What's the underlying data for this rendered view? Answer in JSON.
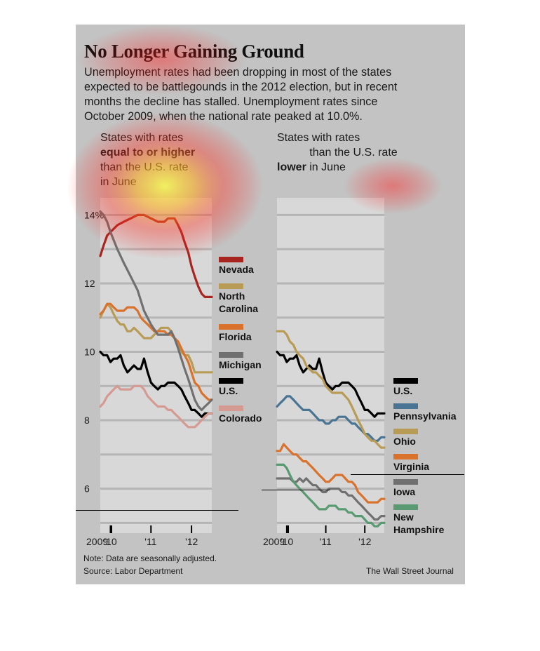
{
  "title": "No Longer Gaining Ground",
  "subtitle": "Unemployment rates had been dropping in most of the states expected to be battlegounds in the 2012 election, but in recent months the decline has stalled. Unemployment rates since October 2009, when the national rate peaked at 10.0%.",
  "left_header": {
    "pre": "States with rates",
    "bold": "equal to or higher",
    "post": "than the U.S. rate in June"
  },
  "right_header": {
    "pre": "States with rates",
    "bold": "lower",
    "post": "than the U.S. rate in June"
  },
  "note": "Note: Data are seasonally adjusted.",
  "source": "Source: Labor Department",
  "credit": "The Wall Street Journal",
  "colors": {
    "nevada": "#a8251f",
    "north_carolina": "#b89b55",
    "florida": "#d9722c",
    "michigan": "#707070",
    "us": "#000000",
    "colorado": "#d59a92",
    "pennsylvania": "#4a7493",
    "ohio": "#b89b55",
    "virginia": "#d9722c",
    "iowa": "#707070",
    "new_hampshire": "#5a9a73",
    "plot_bg": "#d8d8d8",
    "panel_bg": "#c3c3c3"
  },
  "chart_data": [
    {
      "type": "line",
      "panel": "left",
      "y_tick_labels": [
        "14%",
        "12",
        "10",
        "8",
        "6"
      ],
      "y_ticks": [
        14,
        12,
        10,
        8,
        6
      ],
      "ylim": [
        4.7,
        14.5
      ],
      "x_tick_labels": [
        "2009",
        "'10",
        "'11",
        "'12"
      ],
      "x_ticks": [
        2009.75,
        2010,
        2011,
        2012
      ],
      "xlim": [
        2009.75,
        2012.5
      ],
      "series": [
        {
          "name": "Nevada",
          "key": "nevada",
          "x": [
            2009.75,
            2009.83,
            2009.92,
            2010,
            2010.17,
            2010.33,
            2010.5,
            2010.67,
            2010.83,
            2011,
            2011.17,
            2011.33,
            2011.42,
            2011.5,
            2011.58,
            2011.67,
            2011.75,
            2011.83,
            2011.92,
            2012,
            2012.08,
            2012.17,
            2012.25,
            2012.33,
            2012.42,
            2012.5
          ],
          "y": [
            12.8,
            13.1,
            13.4,
            13.5,
            13.7,
            13.8,
            13.9,
            14.0,
            14.0,
            13.9,
            13.8,
            13.8,
            13.9,
            13.9,
            13.9,
            13.7,
            13.5,
            13.2,
            12.9,
            12.5,
            12.2,
            11.9,
            11.7,
            11.6,
            11.6,
            11.6
          ]
        },
        {
          "name": "North Carolina",
          "key": "north_carolina",
          "x": [
            2009.75,
            2009.83,
            2009.92,
            2010,
            2010.08,
            2010.17,
            2010.25,
            2010.33,
            2010.42,
            2010.5,
            2010.58,
            2010.67,
            2010.75,
            2010.83,
            2010.92,
            2011,
            2011.08,
            2011.17,
            2011.25,
            2011.33,
            2011.42,
            2011.5,
            2011.58,
            2011.67,
            2011.75,
            2011.83,
            2011.92,
            2012,
            2012.08,
            2012.17,
            2012.25,
            2012.33,
            2012.42,
            2012.5
          ],
          "y": [
            11.0,
            11.2,
            11.4,
            11.3,
            11.1,
            10.9,
            10.8,
            10.8,
            10.6,
            10.6,
            10.7,
            10.6,
            10.5,
            10.4,
            10.4,
            10.4,
            10.5,
            10.6,
            10.7,
            10.7,
            10.7,
            10.6,
            10.4,
            10.3,
            10.0,
            9.9,
            9.9,
            9.7,
            9.4,
            9.4,
            9.4,
            9.4,
            9.4,
            9.4
          ]
        },
        {
          "name": "Florida",
          "key": "florida",
          "x": [
            2009.75,
            2009.83,
            2009.92,
            2010,
            2010.08,
            2010.17,
            2010.25,
            2010.33,
            2010.42,
            2010.5,
            2010.58,
            2010.67,
            2010.75,
            2010.83,
            2010.92,
            2011,
            2011.08,
            2011.17,
            2011.25,
            2011.33,
            2011.42,
            2011.5,
            2011.58,
            2011.67,
            2011.75,
            2011.83,
            2011.92,
            2012,
            2012.08,
            2012.17,
            2012.25,
            2012.33,
            2012.42,
            2012.5
          ],
          "y": [
            11.1,
            11.2,
            11.4,
            11.4,
            11.3,
            11.2,
            11.2,
            11.2,
            11.3,
            11.3,
            11.3,
            11.2,
            11.0,
            10.9,
            10.8,
            10.7,
            10.6,
            10.6,
            10.6,
            10.6,
            10.5,
            10.5,
            10.4,
            10.3,
            10.1,
            9.9,
            9.7,
            9.4,
            9.1,
            9.0,
            8.8,
            8.7,
            8.6,
            8.6
          ]
        },
        {
          "name": "Michigan",
          "key": "michigan",
          "x": [
            2009.75,
            2009.83,
            2009.92,
            2010,
            2010.17,
            2010.33,
            2010.5,
            2010.67,
            2010.83,
            2011,
            2011.17,
            2011.33,
            2011.42,
            2011.5,
            2011.58,
            2011.67,
            2011.75,
            2011.83,
            2011.92,
            2012,
            2012.08,
            2012.17,
            2012.25,
            2012.33,
            2012.42,
            2012.5
          ],
          "y": [
            14.1,
            14.0,
            13.8,
            13.5,
            13.0,
            12.6,
            12.2,
            11.8,
            11.2,
            10.8,
            10.5,
            10.5,
            10.5,
            10.6,
            10.4,
            10.1,
            9.8,
            9.5,
            9.2,
            8.9,
            8.6,
            8.4,
            8.3,
            8.4,
            8.5,
            8.6
          ]
        },
        {
          "name": "U.S.",
          "key": "us",
          "x": [
            2009.75,
            2009.83,
            2009.92,
            2010,
            2010.08,
            2010.17,
            2010.25,
            2010.33,
            2010.42,
            2010.5,
            2010.58,
            2010.67,
            2010.75,
            2010.83,
            2010.92,
            2011,
            2011.08,
            2011.17,
            2011.25,
            2011.33,
            2011.42,
            2011.5,
            2011.58,
            2011.67,
            2011.75,
            2011.83,
            2011.92,
            2012,
            2012.08,
            2012.17,
            2012.25,
            2012.33,
            2012.42,
            2012.5
          ],
          "y": [
            10.0,
            9.9,
            9.9,
            9.7,
            9.8,
            9.8,
            9.9,
            9.6,
            9.4,
            9.5,
            9.6,
            9.5,
            9.5,
            9.8,
            9.4,
            9.1,
            9.0,
            8.9,
            9.0,
            9.0,
            9.1,
            9.1,
            9.1,
            9.0,
            8.9,
            8.7,
            8.5,
            8.3,
            8.3,
            8.2,
            8.1,
            8.2,
            8.2,
            8.2
          ]
        },
        {
          "name": "Colorado",
          "key": "colorado",
          "x": [
            2009.75,
            2009.83,
            2009.92,
            2010,
            2010.08,
            2010.17,
            2010.25,
            2010.33,
            2010.42,
            2010.5,
            2010.58,
            2010.67,
            2010.75,
            2010.83,
            2010.92,
            2011,
            2011.08,
            2011.17,
            2011.25,
            2011.33,
            2011.42,
            2011.5,
            2011.58,
            2011.67,
            2011.75,
            2011.83,
            2011.92,
            2012,
            2012.08,
            2012.17,
            2012.25,
            2012.33,
            2012.42,
            2012.5
          ],
          "y": [
            8.4,
            8.5,
            8.7,
            8.8,
            8.9,
            9.0,
            8.9,
            8.9,
            8.9,
            8.9,
            9.0,
            9.0,
            9.0,
            8.9,
            8.7,
            8.6,
            8.5,
            8.4,
            8.4,
            8.4,
            8.3,
            8.3,
            8.2,
            8.1,
            8.0,
            7.9,
            7.8,
            7.8,
            7.8,
            7.9,
            8.0,
            8.1,
            8.2,
            8.2
          ]
        }
      ]
    },
    {
      "type": "line",
      "panel": "right",
      "ylim": [
        4.7,
        14.5
      ],
      "x_tick_labels": [
        "2009",
        "'10",
        "'11",
        "'12"
      ],
      "x_ticks": [
        2009.75,
        2010,
        2011,
        2012
      ],
      "xlim": [
        2009.75,
        2012.5
      ],
      "series": [
        {
          "name": "U.S.",
          "key": "us",
          "x": [
            2009.75,
            2009.83,
            2009.92,
            2010,
            2010.08,
            2010.17,
            2010.25,
            2010.33,
            2010.42,
            2010.5,
            2010.58,
            2010.67,
            2010.75,
            2010.83,
            2010.92,
            2011,
            2011.08,
            2011.17,
            2011.25,
            2011.33,
            2011.42,
            2011.5,
            2011.58,
            2011.67,
            2011.75,
            2011.83,
            2011.92,
            2012,
            2012.08,
            2012.17,
            2012.25,
            2012.33,
            2012.42,
            2012.5
          ],
          "y": [
            10.0,
            9.9,
            9.9,
            9.7,
            9.8,
            9.8,
            9.9,
            9.6,
            9.4,
            9.5,
            9.6,
            9.5,
            9.5,
            9.8,
            9.4,
            9.1,
            9.0,
            8.9,
            9.0,
            9.0,
            9.1,
            9.1,
            9.1,
            9.0,
            8.9,
            8.7,
            8.5,
            8.3,
            8.3,
            8.2,
            8.1,
            8.2,
            8.2,
            8.2
          ]
        },
        {
          "name": "Pennsylvania",
          "key": "pennsylvania",
          "x": [
            2009.75,
            2009.83,
            2009.92,
            2010,
            2010.08,
            2010.17,
            2010.25,
            2010.33,
            2010.42,
            2010.5,
            2010.58,
            2010.67,
            2010.75,
            2010.83,
            2010.92,
            2011,
            2011.08,
            2011.17,
            2011.25,
            2011.33,
            2011.42,
            2011.5,
            2011.58,
            2011.67,
            2011.75,
            2011.83,
            2011.92,
            2012,
            2012.08,
            2012.17,
            2012.25,
            2012.33,
            2012.42,
            2012.5
          ],
          "y": [
            8.4,
            8.5,
            8.6,
            8.7,
            8.7,
            8.6,
            8.5,
            8.4,
            8.3,
            8.3,
            8.3,
            8.2,
            8.1,
            8.0,
            8.0,
            7.9,
            7.9,
            8.0,
            8.0,
            8.1,
            8.1,
            8.1,
            8.0,
            7.9,
            7.9,
            7.8,
            7.7,
            7.6,
            7.6,
            7.5,
            7.4,
            7.4,
            7.5,
            7.5
          ]
        },
        {
          "name": "Ohio",
          "key": "ohio",
          "x": [
            2009.75,
            2009.83,
            2009.92,
            2010,
            2010.08,
            2010.17,
            2010.25,
            2010.33,
            2010.42,
            2010.5,
            2010.58,
            2010.67,
            2010.75,
            2010.83,
            2010.92,
            2011,
            2011.08,
            2011.17,
            2011.25,
            2011.33,
            2011.42,
            2011.5,
            2011.58,
            2011.67,
            2011.75,
            2011.83,
            2011.92,
            2012,
            2012.08,
            2012.17,
            2012.25,
            2012.33,
            2012.42,
            2012.5
          ],
          "y": [
            10.6,
            10.6,
            10.6,
            10.5,
            10.3,
            10.2,
            10.0,
            9.9,
            9.8,
            9.6,
            9.5,
            9.4,
            9.4,
            9.3,
            9.2,
            9.0,
            8.9,
            8.8,
            8.8,
            8.8,
            8.8,
            8.7,
            8.6,
            8.4,
            8.2,
            8.0,
            7.8,
            7.6,
            7.5,
            7.4,
            7.4,
            7.3,
            7.2,
            7.2
          ]
        },
        {
          "name": "Virginia",
          "key": "virginia",
          "x": [
            2009.75,
            2009.83,
            2009.92,
            2010,
            2010.08,
            2010.17,
            2010.25,
            2010.33,
            2010.42,
            2010.5,
            2010.58,
            2010.67,
            2010.75,
            2010.83,
            2010.92,
            2011,
            2011.08,
            2011.17,
            2011.25,
            2011.33,
            2011.42,
            2011.5,
            2011.58,
            2011.67,
            2011.75,
            2011.83,
            2011.92,
            2012,
            2012.08,
            2012.17,
            2012.25,
            2012.33,
            2012.42,
            2012.5
          ],
          "y": [
            7.1,
            7.1,
            7.3,
            7.2,
            7.1,
            7.0,
            7.0,
            6.9,
            6.8,
            6.8,
            6.7,
            6.6,
            6.5,
            6.4,
            6.3,
            6.2,
            6.2,
            6.3,
            6.4,
            6.4,
            6.4,
            6.3,
            6.2,
            6.2,
            6.1,
            5.9,
            5.8,
            5.7,
            5.6,
            5.6,
            5.6,
            5.6,
            5.7,
            5.7
          ]
        },
        {
          "name": "Iowa",
          "key": "iowa",
          "x": [
            2009.75,
            2009.83,
            2009.92,
            2010,
            2010.08,
            2010.17,
            2010.25,
            2010.33,
            2010.42,
            2010.5,
            2010.58,
            2010.67,
            2010.75,
            2010.83,
            2010.92,
            2011,
            2011.08,
            2011.17,
            2011.25,
            2011.33,
            2011.42,
            2011.5,
            2011.58,
            2011.67,
            2011.75,
            2011.83,
            2011.92,
            2012,
            2012.08,
            2012.17,
            2012.25,
            2012.33,
            2012.42,
            2012.5
          ],
          "y": [
            6.3,
            6.3,
            6.3,
            6.3,
            6.3,
            6.2,
            6.2,
            6.3,
            6.2,
            6.3,
            6.2,
            6.1,
            6.1,
            6.0,
            5.9,
            5.9,
            6.0,
            6.0,
            6.0,
            6.0,
            5.9,
            5.9,
            5.8,
            5.8,
            5.7,
            5.6,
            5.5,
            5.4,
            5.3,
            5.2,
            5.1,
            5.1,
            5.2,
            5.2
          ]
        },
        {
          "name": "New Hampshire",
          "key": "new_hampshire",
          "x": [
            2009.75,
            2009.83,
            2009.92,
            2010,
            2010.08,
            2010.17,
            2010.25,
            2010.33,
            2010.42,
            2010.5,
            2010.58,
            2010.67,
            2010.75,
            2010.83,
            2010.92,
            2011,
            2011.08,
            2011.17,
            2011.25,
            2011.33,
            2011.42,
            2011.5,
            2011.58,
            2011.67,
            2011.75,
            2011.83,
            2011.92,
            2012,
            2012.08,
            2012.17,
            2012.25,
            2012.33,
            2012.42,
            2012.5
          ],
          "y": [
            6.7,
            6.7,
            6.7,
            6.6,
            6.4,
            6.2,
            6.1,
            6.0,
            5.9,
            5.8,
            5.7,
            5.6,
            5.5,
            5.4,
            5.4,
            5.4,
            5.5,
            5.5,
            5.5,
            5.4,
            5.4,
            5.4,
            5.3,
            5.3,
            5.2,
            5.2,
            5.2,
            5.1,
            5.0,
            5.0,
            4.9,
            4.9,
            5.0,
            5.0
          ]
        }
      ]
    }
  ]
}
